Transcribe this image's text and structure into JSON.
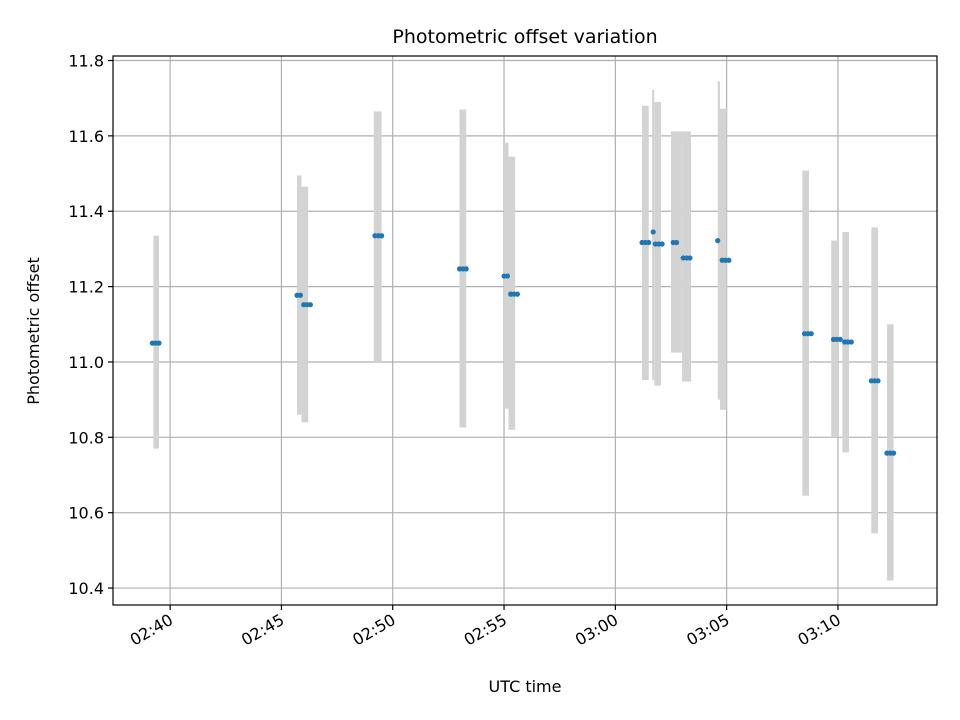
{
  "chart_data": {
    "type": "scatter",
    "title": "Photometric offset variation",
    "xlabel": "UTC time",
    "ylabel": "Photometric offset",
    "xlim": [
      "02:37:26",
      "03:14:27"
    ],
    "ylim": [
      10.355,
      11.812
    ],
    "x_ticks": [
      "02:40",
      "02:45",
      "02:50",
      "02:55",
      "03:00",
      "03:05",
      "03:10"
    ],
    "y_ticks": [
      "10.4",
      "10.6",
      "10.8",
      "11.0",
      "11.2",
      "11.4",
      "11.6",
      "11.8"
    ],
    "grid": true,
    "colors": {
      "point": "#1f77b4",
      "range": "#d3d3d3",
      "grid": "#b0b0b0"
    },
    "ranges": [
      {
        "x0": "02:39:15",
        "x1": "02:39:30",
        "low": 10.77,
        "high": 11.335
      },
      {
        "x0": "02:45:42",
        "x1": "02:45:54",
        "low": 10.86,
        "high": 11.495
      },
      {
        "x0": "02:45:54",
        "x1": "02:46:12",
        "low": 10.84,
        "high": 11.465
      },
      {
        "x0": "02:49:09",
        "x1": "02:49:30",
        "low": 11.0,
        "high": 11.665
      },
      {
        "x0": "02:53:00",
        "x1": "02:53:18",
        "low": 10.826,
        "high": 11.67
      },
      {
        "x0": "02:55:00",
        "x1": "02:55:12",
        "low": 10.876,
        "high": 11.582
      },
      {
        "x0": "02:55:12",
        "x1": "02:55:30",
        "low": 10.82,
        "high": 11.545
      },
      {
        "x0": "03:01:12",
        "x1": "03:01:30",
        "low": 10.952,
        "high": 11.68
      },
      {
        "x0": "03:01:39",
        "x1": "03:01:45",
        "low": 10.952,
        "high": 11.722
      },
      {
        "x0": "03:01:45",
        "x1": "03:02:03",
        "low": 10.937,
        "high": 11.69
      },
      {
        "x0": "03:02:30",
        "x1": "03:03:00",
        "low": 11.025,
        "high": 11.612
      },
      {
        "x0": "03:03:00",
        "x1": "03:03:24",
        "low": 10.948,
        "high": 11.612
      },
      {
        "x0": "03:04:36",
        "x1": "03:04:42",
        "low": 10.9,
        "high": 11.745
      },
      {
        "x0": "03:04:42",
        "x1": "03:05:00",
        "low": 10.873,
        "high": 11.672
      },
      {
        "x0": "03:08:24",
        "x1": "03:08:42",
        "low": 10.645,
        "high": 11.508
      },
      {
        "x0": "03:09:42",
        "x1": "03:10:00",
        "low": 10.8,
        "high": 11.322
      },
      {
        "x0": "03:10:12",
        "x1": "03:10:30",
        "low": 10.76,
        "high": 11.345
      },
      {
        "x0": "03:11:30",
        "x1": "03:11:48",
        "low": 10.545,
        "high": 11.357
      },
      {
        "x0": "03:12:12",
        "x1": "03:12:30",
        "low": 10.42,
        "high": 11.1
      }
    ],
    "points": [
      {
        "x": "02:39:12",
        "y": 11.05
      },
      {
        "x": "02:39:21",
        "y": 11.05
      },
      {
        "x": "02:39:30",
        "y": 11.05
      },
      {
        "x": "02:45:42",
        "y": 11.177
      },
      {
        "x": "02:45:51",
        "y": 11.177
      },
      {
        "x": "02:46:00",
        "y": 11.152
      },
      {
        "x": "02:46:09",
        "y": 11.152
      },
      {
        "x": "02:46:18",
        "y": 11.152
      },
      {
        "x": "02:49:12",
        "y": 11.335
      },
      {
        "x": "02:49:21",
        "y": 11.335
      },
      {
        "x": "02:49:30",
        "y": 11.335
      },
      {
        "x": "02:53:00",
        "y": 11.247
      },
      {
        "x": "02:53:09",
        "y": 11.247
      },
      {
        "x": "02:53:18",
        "y": 11.247
      },
      {
        "x": "02:55:00",
        "y": 11.228
      },
      {
        "x": "02:55:09",
        "y": 11.228
      },
      {
        "x": "02:55:18",
        "y": 11.18
      },
      {
        "x": "02:55:27",
        "y": 11.18
      },
      {
        "x": "02:55:36",
        "y": 11.18
      },
      {
        "x": "03:01:12",
        "y": 11.317
      },
      {
        "x": "03:01:21",
        "y": 11.317
      },
      {
        "x": "03:01:30",
        "y": 11.317
      },
      {
        "x": "03:01:42",
        "y": 11.345
      },
      {
        "x": "03:01:48",
        "y": 11.313
      },
      {
        "x": "03:01:57",
        "y": 11.313
      },
      {
        "x": "03:02:06",
        "y": 11.313
      },
      {
        "x": "03:02:36",
        "y": 11.317
      },
      {
        "x": "03:02:45",
        "y": 11.317
      },
      {
        "x": "03:03:03",
        "y": 11.276
      },
      {
        "x": "03:03:12",
        "y": 11.276
      },
      {
        "x": "03:03:21",
        "y": 11.276
      },
      {
        "x": "03:04:36",
        "y": 11.322
      },
      {
        "x": "03:04:48",
        "y": 11.27
      },
      {
        "x": "03:04:57",
        "y": 11.27
      },
      {
        "x": "03:05:06",
        "y": 11.27
      },
      {
        "x": "03:08:30",
        "y": 11.075
      },
      {
        "x": "03:08:39",
        "y": 11.075
      },
      {
        "x": "03:08:48",
        "y": 11.075
      },
      {
        "x": "03:09:48",
        "y": 11.06
      },
      {
        "x": "03:09:57",
        "y": 11.06
      },
      {
        "x": "03:10:06",
        "y": 11.06
      },
      {
        "x": "03:10:18",
        "y": 11.053
      },
      {
        "x": "03:10:27",
        "y": 11.053
      },
      {
        "x": "03:10:36",
        "y": 11.053
      },
      {
        "x": "03:11:30",
        "y": 10.95
      },
      {
        "x": "03:11:39",
        "y": 10.95
      },
      {
        "x": "03:11:48",
        "y": 10.95
      },
      {
        "x": "03:12:12",
        "y": 10.758
      },
      {
        "x": "03:12:21",
        "y": 10.758
      },
      {
        "x": "03:12:30",
        "y": 10.758
      }
    ]
  }
}
